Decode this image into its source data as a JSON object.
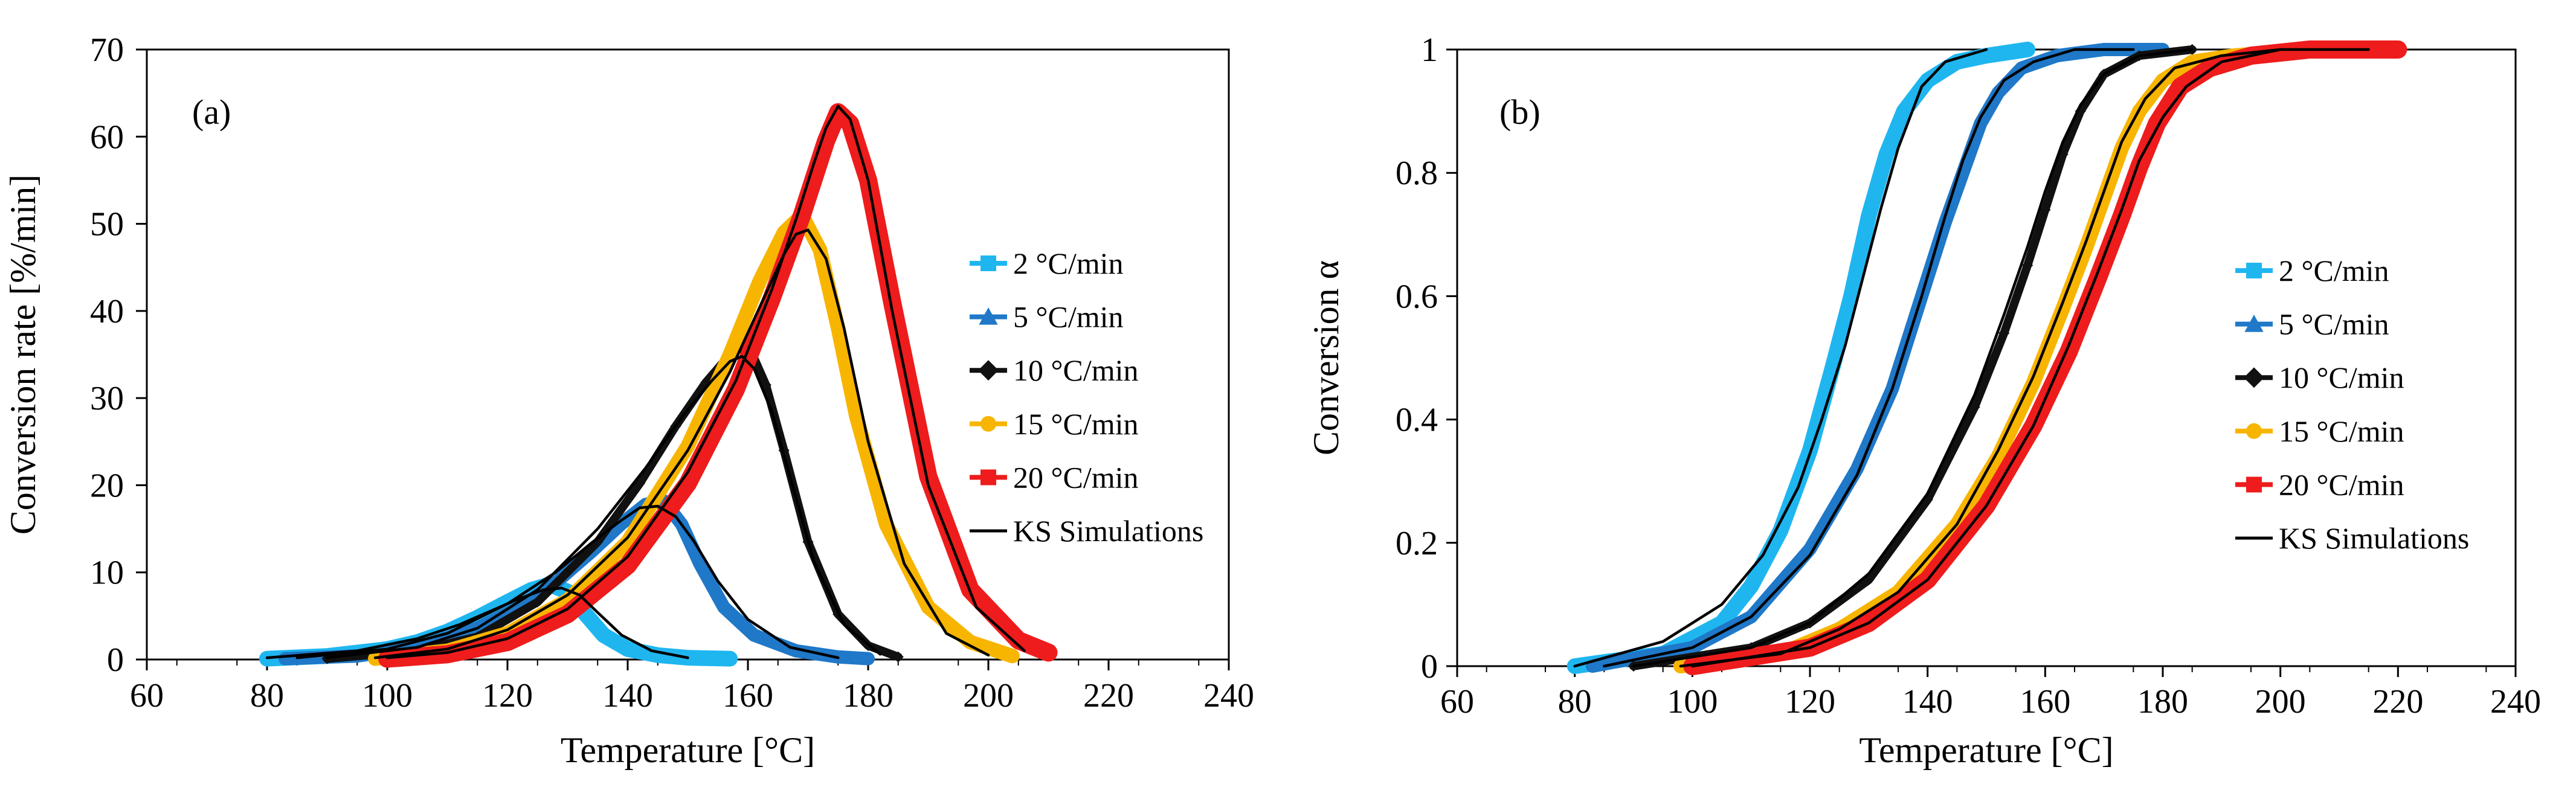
{
  "chart_data": [
    {
      "type": "line",
      "panel_label": "(a)",
      "title": "",
      "xlabel": "Temperature [°C]",
      "ylabel": "Conversion rate [%/min]",
      "xlim": [
        60,
        240
      ],
      "ylim": [
        0,
        70
      ],
      "xticks": [
        "60",
        "80",
        "100",
        "120",
        "140",
        "160",
        "180",
        "200",
        "220",
        "240"
      ],
      "yticks": [
        "0",
        "10",
        "20",
        "30",
        "40",
        "50",
        "60",
        "70"
      ],
      "grid": false,
      "legend_position": "right-middle",
      "legend": [
        "2 °C/min",
        "5 °C/min",
        "10 °C/min",
        "15 °C/min",
        "20 °C/min",
        "KS Simulations"
      ],
      "series": [
        {
          "name": "2 °C/min",
          "color": "#1fb6f0",
          "marker": "square",
          "x": [
            80,
            90,
            100,
            105,
            110,
            115,
            120,
            124,
            127,
            130,
            133,
            136,
            140,
            145,
            150,
            157
          ],
          "y": [
            0.1,
            0.4,
            1.2,
            2.0,
            3.2,
            4.8,
            6.6,
            8.0,
            8.6,
            7.8,
            5.2,
            2.8,
            1.2,
            0.5,
            0.2,
            0.1
          ]
        },
        {
          "name": "5 °C/min",
          "color": "#1f78c8",
          "marker": "triangle",
          "x": [
            83,
            95,
            105,
            115,
            122,
            128,
            134,
            139,
            143,
            146,
            149,
            152,
            156,
            161,
            168,
            175,
            180
          ],
          "y": [
            0.1,
            0.4,
            1.4,
            3.6,
            6.0,
            8.8,
            12.4,
            15.6,
            17.8,
            18.2,
            15.5,
            11.0,
            6.0,
            2.8,
            1.0,
            0.3,
            0.1
          ]
        },
        {
          "name": "10 °C/min",
          "color": "#111111",
          "marker": "diamond",
          "x": [
            90,
            105,
            115,
            125,
            135,
            142,
            148,
            153,
            157,
            160,
            163,
            166,
            170,
            175,
            180,
            185
          ],
          "y": [
            0.1,
            1.0,
            2.6,
            6.6,
            13.5,
            20.2,
            26.8,
            31.8,
            35.0,
            36.2,
            31.5,
            24.0,
            13.5,
            5.2,
            1.6,
            0.3
          ]
        },
        {
          "name": "15 °C/min",
          "color": "#f7b500",
          "marker": "circle",
          "x": [
            98,
            110,
            120,
            130,
            140,
            150,
            157,
            162,
            166,
            169,
            172,
            175,
            178,
            183,
            190,
            197,
            204
          ],
          "y": [
            0.1,
            1.0,
            3.0,
            6.8,
            13.5,
            24.5,
            35.0,
            43.5,
            49.0,
            51.0,
            47.0,
            38.0,
            28.0,
            15.5,
            6.0,
            2.0,
            0.4
          ]
        },
        {
          "name": "20 °C/min",
          "color": "#ee1c1c",
          "marker": "square",
          "x": [
            100,
            110,
            120,
            130,
            140,
            150,
            158,
            164,
            169,
            173,
            175,
            177,
            180,
            184,
            190,
            197,
            205,
            210
          ],
          "y": [
            0.1,
            0.6,
            2.0,
            5.2,
            10.8,
            20.2,
            31.0,
            41.5,
            51.0,
            59.5,
            62.8,
            61.5,
            55.0,
            41.0,
            21.0,
            8.0,
            2.2,
            0.8
          ]
        }
      ],
      "simulations": [
        {
          "name": "KS Simulations",
          "color": "#000000",
          "x": [
            80,
            95,
            105,
            112,
            118,
            122,
            126,
            129,
            132,
            135,
            139,
            144,
            150
          ],
          "y": [
            0.2,
            1.0,
            2.4,
            4.0,
            5.8,
            7.0,
            8.0,
            8.2,
            7.4,
            5.4,
            2.8,
            1.0,
            0.2
          ]
        },
        {
          "name": "KS Simulations",
          "color": "#000000",
          "x": [
            85,
            100,
            110,
            120,
            128,
            134,
            139,
            142,
            145,
            148,
            151,
            155,
            160,
            167,
            175
          ],
          "y": [
            0.2,
            1.2,
            3.0,
            6.4,
            10.0,
            13.4,
            16.0,
            17.4,
            17.6,
            16.4,
            13.6,
            9.0,
            4.6,
            1.4,
            0.2
          ]
        },
        {
          "name": "KS Simulations",
          "color": "#000000",
          "x": [
            90,
            105,
            115,
            125,
            135,
            143,
            149,
            154,
            157,
            159,
            161,
            164,
            167,
            171,
            176,
            182
          ],
          "y": [
            0.2,
            1.4,
            3.6,
            8.0,
            15.0,
            22.0,
            27.8,
            32.0,
            34.2,
            34.8,
            33.4,
            28.4,
            21.0,
            11.2,
            4.0,
            0.6
          ]
        },
        {
          "name": "KS Simulations",
          "color": "#000000",
          "x": [
            98,
            110,
            120,
            130,
            140,
            150,
            157,
            162,
            166,
            168,
            170,
            173,
            176,
            180,
            186,
            193,
            200
          ],
          "y": [
            0.2,
            1.2,
            3.4,
            7.4,
            14.0,
            24.0,
            33.0,
            40.5,
            46.5,
            48.8,
            49.3,
            46.0,
            38.0,
            25.0,
            11.0,
            3.0,
            0.5
          ]
        },
        {
          "name": "KS Simulations",
          "color": "#000000",
          "x": [
            100,
            110,
            120,
            130,
            140,
            150,
            158,
            164,
            168,
            171,
            173,
            175,
            177,
            180,
            184,
            190,
            198,
            206
          ],
          "y": [
            0.2,
            0.8,
            2.4,
            5.8,
            11.8,
            21.5,
            32.0,
            42.5,
            50.5,
            57.0,
            61.0,
            63.5,
            62.0,
            55.0,
            40.0,
            20.0,
            6.0,
            1.0
          ]
        }
      ]
    },
    {
      "type": "line",
      "panel_label": "(b)",
      "title": "",
      "xlabel": "Temperature [°C]",
      "ylabel": "Conversion α",
      "xlim": [
        60,
        240
      ],
      "ylim": [
        0,
        1
      ],
      "xticks": [
        "60",
        "80",
        "100",
        "120",
        "140",
        "160",
        "180",
        "200",
        "220",
        "240"
      ],
      "yticks": [
        "0",
        "0.2",
        "0.4",
        "0.6",
        "0.8",
        "1"
      ],
      "grid": false,
      "legend_position": "right-middle",
      "legend": [
        "2 °C/min",
        "5 °C/min",
        "10 °C/min",
        "15 °C/min",
        "20 °C/min",
        "KS Simulations"
      ],
      "series": [
        {
          "name": "2 °C/min",
          "color": "#1fb6f0",
          "marker": "square",
          "x": [
            80,
            95,
            105,
            110,
            115,
            120,
            124,
            127,
            130,
            133,
            136,
            140,
            145,
            150,
            157
          ],
          "y": [
            0.0,
            0.02,
            0.07,
            0.13,
            0.22,
            0.35,
            0.49,
            0.6,
            0.73,
            0.83,
            0.9,
            0.95,
            0.98,
            0.99,
            1.0
          ]
        },
        {
          "name": "5 °C/min",
          "color": "#1f78c8",
          "marker": "triangle",
          "x": [
            83,
            100,
            110,
            120,
            128,
            134,
            139,
            143,
            146,
            149,
            152,
            156,
            162,
            170,
            180
          ],
          "y": [
            0.0,
            0.03,
            0.08,
            0.19,
            0.32,
            0.45,
            0.6,
            0.72,
            0.8,
            0.88,
            0.93,
            0.97,
            0.99,
            1.0,
            1.0
          ]
        },
        {
          "name": "10 °C/min",
          "color": "#111111",
          "marker": "diamond",
          "x": [
            90,
            110,
            120,
            130,
            140,
            148,
            153,
            157,
            160,
            163,
            166,
            170,
            176,
            185
          ],
          "y": [
            0.0,
            0.03,
            0.07,
            0.14,
            0.27,
            0.42,
            0.54,
            0.65,
            0.74,
            0.83,
            0.9,
            0.96,
            0.99,
            1.0
          ]
        },
        {
          "name": "15 °C/min",
          "color": "#f7b500",
          "marker": "circle",
          "x": [
            98,
            115,
            125,
            135,
            145,
            152,
            158,
            163,
            167,
            170,
            173,
            176,
            180,
            185,
            192,
            204
          ],
          "y": [
            0.0,
            0.02,
            0.06,
            0.12,
            0.23,
            0.34,
            0.46,
            0.58,
            0.68,
            0.76,
            0.84,
            0.9,
            0.95,
            0.98,
            0.99,
            1.0
          ]
        },
        {
          "name": "20 °C/min",
          "color": "#ee1c1c",
          "marker": "square",
          "x": [
            100,
            120,
            130,
            140,
            150,
            158,
            164,
            169,
            173,
            176,
            179,
            183,
            188,
            195,
            205,
            220
          ],
          "y": [
            0.0,
            0.03,
            0.07,
            0.14,
            0.26,
            0.39,
            0.51,
            0.63,
            0.73,
            0.81,
            0.88,
            0.94,
            0.97,
            0.99,
            1.0,
            1.0
          ]
        }
      ],
      "simulations": [
        {
          "name": "KS Simulations",
          "color": "#000000",
          "x": [
            80,
            95,
            105,
            112,
            118,
            122,
            126,
            129,
            132,
            135,
            139,
            143,
            150
          ],
          "y": [
            0.0,
            0.04,
            0.1,
            0.18,
            0.29,
            0.4,
            0.52,
            0.63,
            0.74,
            0.84,
            0.94,
            0.98,
            1.0
          ]
        },
        {
          "name": "KS Simulations",
          "color": "#000000",
          "x": [
            85,
            100,
            110,
            120,
            128,
            134,
            139,
            143,
            146,
            149,
            153,
            158,
            165,
            175
          ],
          "y": [
            0.0,
            0.03,
            0.08,
            0.18,
            0.31,
            0.45,
            0.6,
            0.73,
            0.82,
            0.89,
            0.95,
            0.98,
            1.0,
            1.0
          ]
        },
        {
          "name": "KS Simulations",
          "color": "#000000",
          "x": [
            90,
            110,
            120,
            130,
            140,
            148,
            153,
            157,
            160,
            163,
            166,
            170,
            176,
            185
          ],
          "y": [
            0.0,
            0.03,
            0.07,
            0.15,
            0.28,
            0.44,
            0.57,
            0.68,
            0.77,
            0.85,
            0.91,
            0.96,
            0.99,
            1.0
          ]
        },
        {
          "name": "KS Simulations",
          "color": "#000000",
          "x": [
            98,
            115,
            125,
            135,
            145,
            152,
            158,
            163,
            167,
            170,
            173,
            177,
            182,
            190,
            200
          ],
          "y": [
            0.0,
            0.02,
            0.06,
            0.12,
            0.23,
            0.35,
            0.47,
            0.59,
            0.69,
            0.77,
            0.85,
            0.92,
            0.97,
            0.99,
            1.0
          ]
        },
        {
          "name": "KS Simulations",
          "color": "#000000",
          "x": [
            100,
            120,
            130,
            140,
            150,
            158,
            164,
            169,
            173,
            176,
            180,
            184,
            190,
            200,
            215
          ],
          "y": [
            0.0,
            0.03,
            0.07,
            0.14,
            0.26,
            0.39,
            0.52,
            0.64,
            0.74,
            0.82,
            0.89,
            0.94,
            0.98,
            1.0,
            1.0
          ]
        }
      ]
    }
  ]
}
